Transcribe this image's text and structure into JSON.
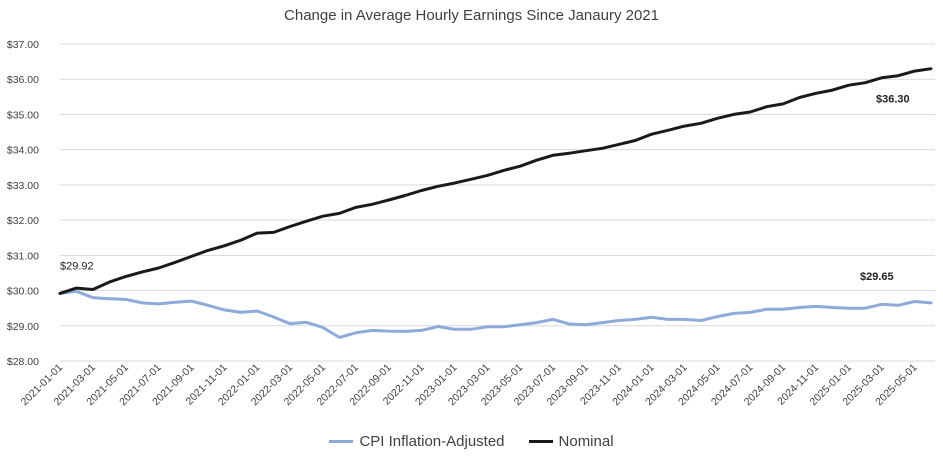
{
  "chart_data": {
    "type": "line",
    "title": "Change in Average Hourly Earnings Since Janaury 2021",
    "xlabel": "",
    "ylabel": "",
    "ylim": [
      28,
      37
    ],
    "y_ticks": [
      "$28.00",
      "$29.00",
      "$30.00",
      "$31.00",
      "$32.00",
      "$33.00",
      "$34.00",
      "$35.00",
      "$36.00",
      "$37.00"
    ],
    "x": [
      "2021-01-01",
      "2021-02-01",
      "2021-03-01",
      "2021-04-01",
      "2021-05-01",
      "2021-06-01",
      "2021-07-01",
      "2021-08-01",
      "2021-09-01",
      "2021-10-01",
      "2021-11-01",
      "2021-12-01",
      "2022-01-01",
      "2022-02-01",
      "2022-03-01",
      "2022-04-01",
      "2022-05-01",
      "2022-06-01",
      "2022-07-01",
      "2022-08-01",
      "2022-09-01",
      "2022-10-01",
      "2022-11-01",
      "2022-12-01",
      "2023-01-01",
      "2023-02-01",
      "2023-03-01",
      "2023-04-01",
      "2023-05-01",
      "2023-06-01",
      "2023-07-01",
      "2023-08-01",
      "2023-09-01",
      "2023-10-01",
      "2023-11-01",
      "2023-12-01",
      "2024-01-01",
      "2024-02-01",
      "2024-03-01",
      "2024-04-01",
      "2024-05-01",
      "2024-06-01",
      "2024-07-01",
      "2024-08-01",
      "2024-09-01",
      "2024-10-01",
      "2024-11-01",
      "2024-12-01",
      "2025-01-01",
      "2025-02-01",
      "2025-03-01",
      "2025-04-01",
      "2025-05-01",
      "2025-06-01"
    ],
    "x_tick_labels": [
      "2021-01-01",
      "2021-03-01",
      "2021-05-01",
      "2021-07-01",
      "2021-09-01",
      "2021-11-01",
      "2022-01-01",
      "2022-03-01",
      "2022-05-01",
      "2022-07-01",
      "2022-09-01",
      "2022-11-01",
      "2023-01-01",
      "2023-03-01",
      "2023-05-01",
      "2023-07-01",
      "2023-09-01",
      "2023-11-01",
      "2024-01-01",
      "2024-03-01",
      "2024-05-01",
      "2024-07-01",
      "2024-09-01",
      "2024-11-01",
      "2025-01-01",
      "2025-03-01",
      "2025-05-01"
    ],
    "series": [
      {
        "name": "CPI Inflation-Adjusted",
        "color": "#8eaadb",
        "values": [
          29.92,
          29.98,
          29.8,
          29.77,
          29.75,
          29.65,
          29.62,
          29.67,
          29.7,
          29.58,
          29.45,
          29.38,
          29.42,
          29.25,
          29.06,
          29.1,
          28.95,
          28.67,
          28.8,
          28.87,
          28.85,
          28.84,
          28.87,
          28.98,
          28.9,
          28.9,
          28.97,
          28.97,
          29.03,
          29.09,
          29.18,
          29.05,
          29.03,
          29.09,
          29.15,
          29.18,
          29.24,
          29.18,
          29.18,
          29.15,
          29.26,
          29.35,
          29.38,
          29.47,
          29.47,
          29.52,
          29.55,
          29.52,
          29.5,
          29.5,
          29.61,
          29.58,
          29.69,
          29.65
        ]
      },
      {
        "name": "Nominal",
        "color": "#1a1a1a",
        "values": [
          29.92,
          30.07,
          30.03,
          30.24,
          30.4,
          30.53,
          30.64,
          30.8,
          30.97,
          31.14,
          31.27,
          31.43,
          31.63,
          31.65,
          31.82,
          31.97,
          32.11,
          32.19,
          32.36,
          32.45,
          32.57,
          32.7,
          32.84,
          32.96,
          33.05,
          33.16,
          33.27,
          33.41,
          33.53,
          33.7,
          33.84,
          33.9,
          33.97,
          34.04,
          34.15,
          34.26,
          34.44,
          34.55,
          34.67,
          34.75,
          34.89,
          35.0,
          35.07,
          35.22,
          35.3,
          35.48,
          35.6,
          35.69,
          35.83,
          35.9,
          36.04,
          36.1,
          36.23,
          36.3
        ]
      }
    ],
    "annotations": [
      {
        "text": "$29.92",
        "series": "start"
      },
      {
        "text": "$36.30",
        "series": "Nominal"
      },
      {
        "text": "$29.65",
        "series": "CPI Inflation-Adjusted"
      }
    ],
    "grid": "horizontal",
    "legend": "bottom"
  }
}
